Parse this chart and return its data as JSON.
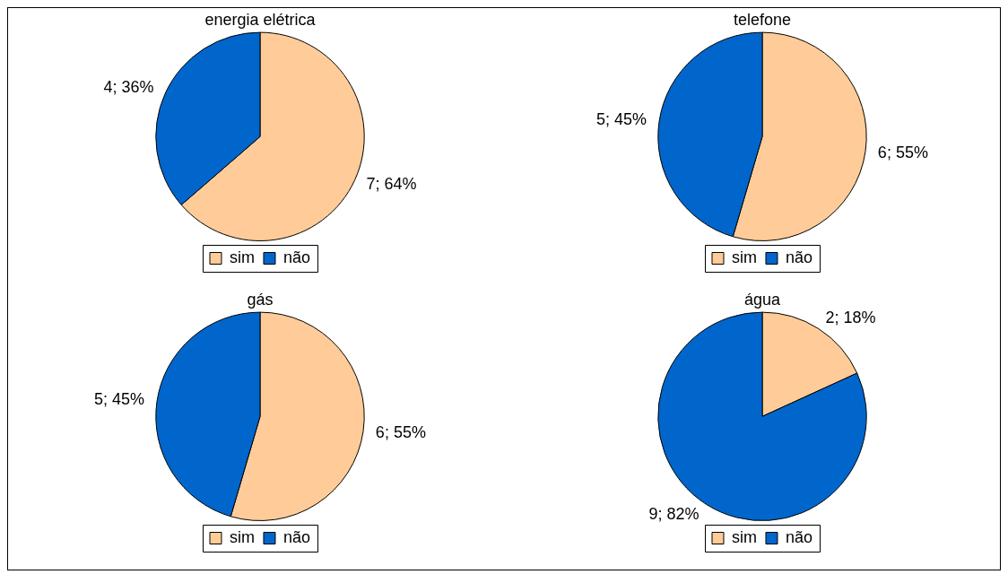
{
  "chart_data": [
    {
      "type": "pie",
      "title": "energia elétrica",
      "categories": [
        "sim",
        "não"
      ],
      "values": [
        7,
        4
      ],
      "colors": [
        "#ffcc99",
        "#0066cc"
      ],
      "value_labels": [
        "7; 64%",
        "4; 36%"
      ],
      "legend": "bottom"
    },
    {
      "type": "pie",
      "title": "telefone",
      "categories": [
        "sim",
        "não"
      ],
      "values": [
        6,
        5
      ],
      "colors": [
        "#ffcc99",
        "#0066cc"
      ],
      "value_labels": [
        "6; 55%",
        "5; 45%"
      ],
      "legend": "bottom"
    },
    {
      "type": "pie",
      "title": "gás",
      "categories": [
        "sim",
        "não"
      ],
      "values": [
        6,
        5
      ],
      "colors": [
        "#ffcc99",
        "#0066cc"
      ],
      "value_labels": [
        "6; 55%",
        "5; 45%"
      ],
      "legend": "bottom"
    },
    {
      "type": "pie",
      "title": "água",
      "categories": [
        "sim",
        "não"
      ],
      "values": [
        2,
        9
      ],
      "colors": [
        "#ffcc99",
        "#0066cc"
      ],
      "value_labels": [
        "2; 18%",
        "9; 82%"
      ],
      "legend": "bottom"
    }
  ]
}
